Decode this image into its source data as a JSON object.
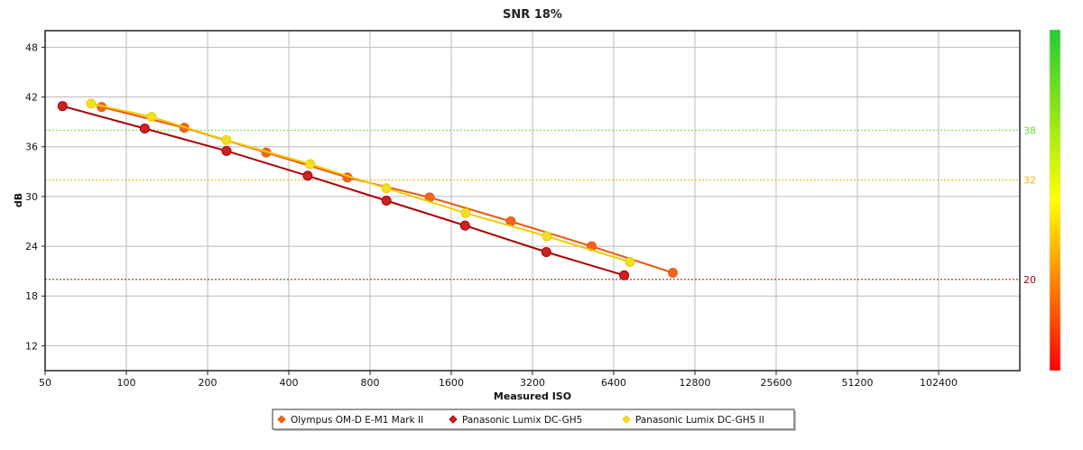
{
  "chart_data": {
    "type": "scatter",
    "title": "SNR 18%",
    "xlabel": "Measured ISO",
    "ylabel": "dB",
    "x_scale": "log2",
    "xlim": [
      50,
      204800
    ],
    "ylim": [
      9,
      50
    ],
    "x_ticks": [
      50,
      100,
      200,
      400,
      800,
      1600,
      3200,
      6400,
      12800,
      25600,
      51200,
      102400
    ],
    "y_ticks": [
      12,
      18,
      24,
      30,
      36,
      42,
      48
    ],
    "grid": true,
    "reference_lines": [
      {
        "value": 38,
        "label": "38",
        "color": "#66dd33"
      },
      {
        "value": 32,
        "label": "32",
        "color": "#f0b400"
      },
      {
        "value": 20,
        "label": "20",
        "color": "#aa0000"
      }
    ],
    "color_scale": {
      "colors": [
        "#22cc33",
        "#ffff00",
        "#ff0000"
      ]
    },
    "legend_position": "bottom-center",
    "series": [
      {
        "name": "Olympus OM-D E-M1 Mark II",
        "color": "#ee5511",
        "dot_color": "#ee6622",
        "x": [
          81,
          164,
          330,
          660,
          1330,
          2660,
          5300,
          10600
        ],
        "y": [
          40.8,
          38.3,
          35.3,
          32.3,
          29.9,
          27.0,
          24.0,
          20.8
        ]
      },
      {
        "name": "Panasonic Lumix DC-GH5",
        "color": "#aa0000",
        "dot_color": "#cc2222",
        "x": [
          58,
          117,
          235,
          470,
          920,
          1800,
          3600,
          7000
        ],
        "y": [
          40.9,
          38.2,
          35.5,
          32.5,
          29.5,
          26.5,
          23.3,
          20.5
        ]
      },
      {
        "name": "Panasonic Lumix DC-GH5 II",
        "color": "#eecc00",
        "dot_color": "#f0e020",
        "x": [
          74,
          124,
          235,
          480,
          920,
          1810,
          3620,
          7350
        ],
        "y": [
          41.2,
          39.6,
          36.8,
          33.9,
          31.0,
          28.0,
          25.2,
          22.1
        ]
      }
    ]
  }
}
